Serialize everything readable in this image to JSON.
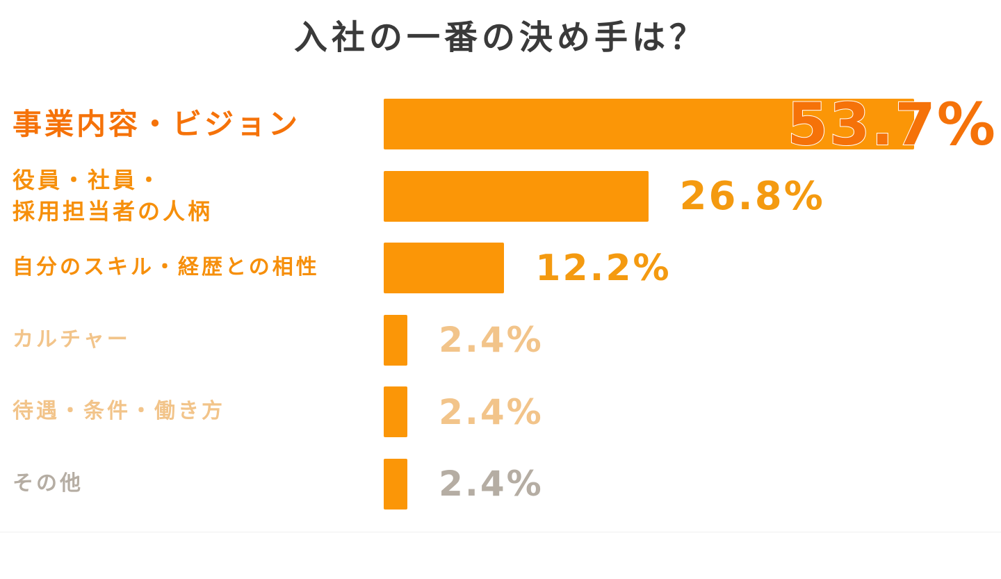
{
  "chart_data": {
    "type": "bar",
    "orientation": "horizontal",
    "title": "入社の一番の決め手は？",
    "categories": [
      [
        "事業内容・ビジョン"
      ],
      [
        "役員・社員・",
        "採用担当者の人柄"
      ],
      [
        "自分のスキル・経歴との相性"
      ],
      [
        "カルチャー"
      ],
      [
        "待遇・条件・働き方"
      ],
      [
        "その他"
      ]
    ],
    "values": [
      53.7,
      26.8,
      12.2,
      2.4,
      2.4,
      2.4
    ],
    "value_labels": [
      "53.7%",
      "26.8%",
      "12.2%",
      "2.4%",
      "2.4%",
      "2.4%"
    ],
    "xlim": [
      0,
      100
    ],
    "grid": false,
    "legend": "none",
    "bar_color": "#fb9607",
    "label_colors": [
      "#f57209",
      "#f68f0b",
      "#f68f0b",
      "#f2c48a",
      "#f2c48a",
      "#b5ada3"
    ],
    "value_colors": [
      "#f57209",
      "#f49a10",
      "#f49a10",
      "#f2c48a",
      "#f2c48a",
      "#b5ada3"
    ]
  }
}
